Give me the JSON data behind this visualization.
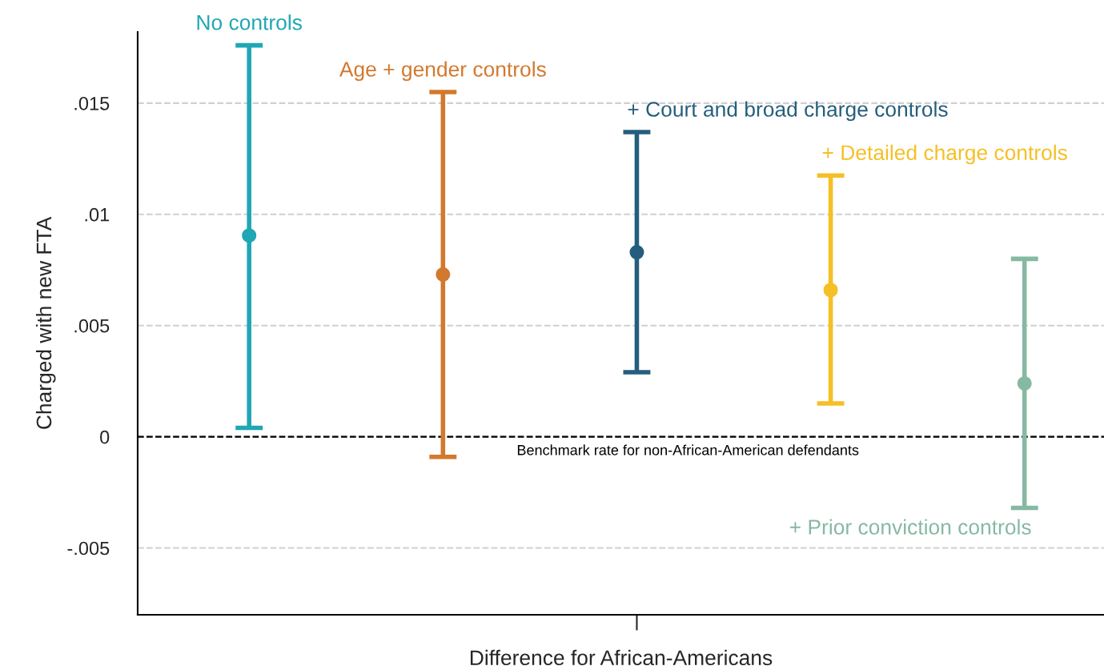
{
  "chart_data": {
    "type": "scatter",
    "xlabel": "Difference for African-Americans",
    "ylabel": "Charged with new FTA",
    "categories": [
      null,
      null,
      null,
      null,
      null
    ],
    "series": [
      {
        "name": "No controls",
        "color": "#1fa7b4",
        "values": [
          0.00905,
          null,
          null,
          null,
          null
        ],
        "errors": [
          [
            0.0004,
            0.0176
          ],
          null,
          null,
          null,
          null
        ]
      },
      {
        "name": "Age + gender controls",
        "color": "#d2792e",
        "values": [
          null,
          0.0073,
          null,
          null,
          null
        ],
        "errors": [
          null,
          [
            -0.0009,
            0.0155
          ],
          null,
          null,
          null
        ]
      },
      {
        "name": "+ Court and broad charge controls",
        "color": "#255e7c",
        "values": [
          null,
          null,
          0.0083,
          null,
          null
        ],
        "errors": [
          null,
          null,
          [
            0.0029,
            0.0137
          ],
          null,
          null
        ]
      },
      {
        "name": "+ Detailed charge controls",
        "color": "#f6bf26",
        "values": [
          null,
          null,
          null,
          0.0066,
          null
        ],
        "errors": [
          null,
          null,
          null,
          [
            0.0015,
            0.01175
          ],
          null
        ]
      },
      {
        "name": "+ Prior conviction controls",
        "color": "#86b9a2",
        "values": [
          null,
          null,
          null,
          null,
          0.0024
        ],
        "errors": [
          null,
          null,
          null,
          null,
          [
            -0.0032,
            0.008
          ]
        ]
      }
    ],
    "ylim": [
      -0.008,
      0.0182
    ],
    "yticks": [
      {
        "value": -0.005,
        "label": "-.005"
      },
      {
        "value": 0,
        "label": "0"
      },
      {
        "value": 0.005,
        "label": ".005"
      },
      {
        "value": 0.01,
        "label": ".01"
      },
      {
        "value": 0.015,
        "label": ".015"
      }
    ],
    "grid": "y",
    "marker": "circle",
    "ref_lines": [
      {
        "axis": "y",
        "value": 0,
        "label": "Benchmark rate for non-African-American defendants",
        "color": "#000000",
        "line_style": "dashed"
      }
    ]
  }
}
